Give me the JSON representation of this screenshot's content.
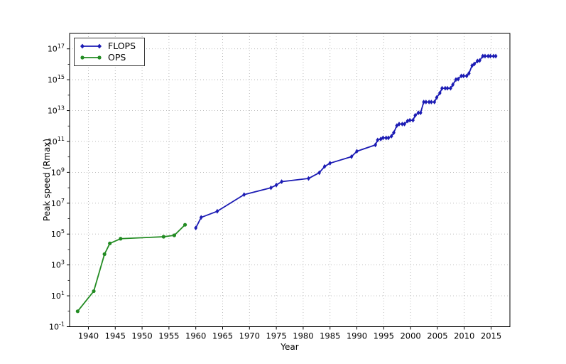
{
  "chart_data": {
    "type": "line",
    "title": "",
    "xlabel": "Year",
    "ylabel": "Peak speed (Rmax)",
    "y_scale": "log",
    "grid": true,
    "legend_position": "upper-left",
    "xlim": [
      1936.5,
      2018.5
    ],
    "ylim_exponents": [
      -1,
      18
    ],
    "x_ticks": [
      1940,
      1945,
      1950,
      1955,
      1960,
      1965,
      1970,
      1975,
      1980,
      1985,
      1990,
      1995,
      2000,
      2005,
      2010,
      2015
    ],
    "y_tick_exponents": [
      -1,
      1,
      3,
      5,
      7,
      9,
      11,
      13,
      15,
      17
    ],
    "colors": {
      "flops_line": "#1c1cb4",
      "ops_line": "#228b22",
      "grid_line": "#b3b3b3",
      "spine": "#000000",
      "text": "#000000"
    },
    "series": [
      {
        "name": "FLOPS",
        "color": "#1c1cb4",
        "marker": "diamond",
        "points": [
          [
            1960,
            250000.0
          ],
          [
            1961,
            1200000.0
          ],
          [
            1964,
            3000000.0
          ],
          [
            1969,
            36000000.0
          ],
          [
            1974,
            100000000.0
          ],
          [
            1975,
            150000000.0
          ],
          [
            1976,
            250000000.0
          ],
          [
            1981,
            400000000.0
          ],
          [
            1983,
            941000000.0
          ],
          [
            1984,
            2400000000.0
          ],
          [
            1985,
            3900000000.0
          ],
          [
            1989,
            10300000000.0
          ],
          [
            1990,
            23200000000.0
          ],
          [
            1993.45,
            59700000000.0
          ],
          [
            1993.87,
            124400000000.0
          ],
          [
            1994.45,
            143400000000.0
          ],
          [
            1994.87,
            170400000000.0
          ],
          [
            1995.45,
            170400000000.0
          ],
          [
            1995.87,
            170400000000.0
          ],
          [
            1996.45,
            220400000000.0
          ],
          [
            1996.87,
            368200000000.0
          ],
          [
            1997.45,
            1068000000000.0
          ],
          [
            1997.87,
            1338000000000.0
          ],
          [
            1998.45,
            1338000000000.0
          ],
          [
            1998.87,
            1338000000000.0
          ],
          [
            1999.45,
            2121000000000.0
          ],
          [
            1999.87,
            2379000000000.0
          ],
          [
            2000.45,
            2379000000000.0
          ],
          [
            2000.87,
            4938000000000.0
          ],
          [
            2001.45,
            7226000000000.0
          ],
          [
            2001.87,
            7226000000000.0
          ],
          [
            2002.45,
            35860000000000.0
          ],
          [
            2002.87,
            35860000000000.0
          ],
          [
            2003.45,
            35860000000000.0
          ],
          [
            2003.87,
            35860000000000.0
          ],
          [
            2004.45,
            35860000000000.0
          ],
          [
            2004.87,
            70720000000000.0
          ],
          [
            2005.45,
            136800000000000.0
          ],
          [
            2005.87,
            280600000000000.0
          ],
          [
            2006.45,
            280600000000000.0
          ],
          [
            2006.87,
            280600000000000.0
          ],
          [
            2007.45,
            280600000000000.0
          ],
          [
            2007.87,
            478200000000000.0
          ],
          [
            2008.45,
            1026000000000000.0
          ],
          [
            2008.87,
            1105000000000000.0
          ],
          [
            2009.45,
            1759000000000000.0
          ],
          [
            2009.87,
            1759000000000000.0
          ],
          [
            2010.45,
            1759000000000000.0
          ],
          [
            2010.87,
            2566000000000000.0
          ],
          [
            2011.45,
            8162000000000000.0
          ],
          [
            2011.87,
            1.051e+16
          ],
          [
            2012.45,
            1.632e+16
          ],
          [
            2012.87,
            1.759e+16
          ],
          [
            2013.45,
            3.386e+16
          ],
          [
            2013.87,
            3.386e+16
          ],
          [
            2014.45,
            3.386e+16
          ],
          [
            2014.87,
            3.386e+16
          ],
          [
            2015.45,
            3.386e+16
          ],
          [
            2015.87,
            3.386e+16
          ]
        ]
      },
      {
        "name": "OPS",
        "color": "#228b22",
        "marker": "circle",
        "points": [
          [
            1938,
            1
          ],
          [
            1941,
            20
          ],
          [
            1943,
            5000.0
          ],
          [
            1944,
            25000.0
          ],
          [
            1946,
            50000.0
          ],
          [
            1954,
            67000.0
          ],
          [
            1956,
            83000.0
          ],
          [
            1958,
            400000.0
          ]
        ]
      }
    ]
  },
  "legend": {
    "items": [
      {
        "label": "FLOPS"
      },
      {
        "label": "OPS"
      }
    ]
  }
}
